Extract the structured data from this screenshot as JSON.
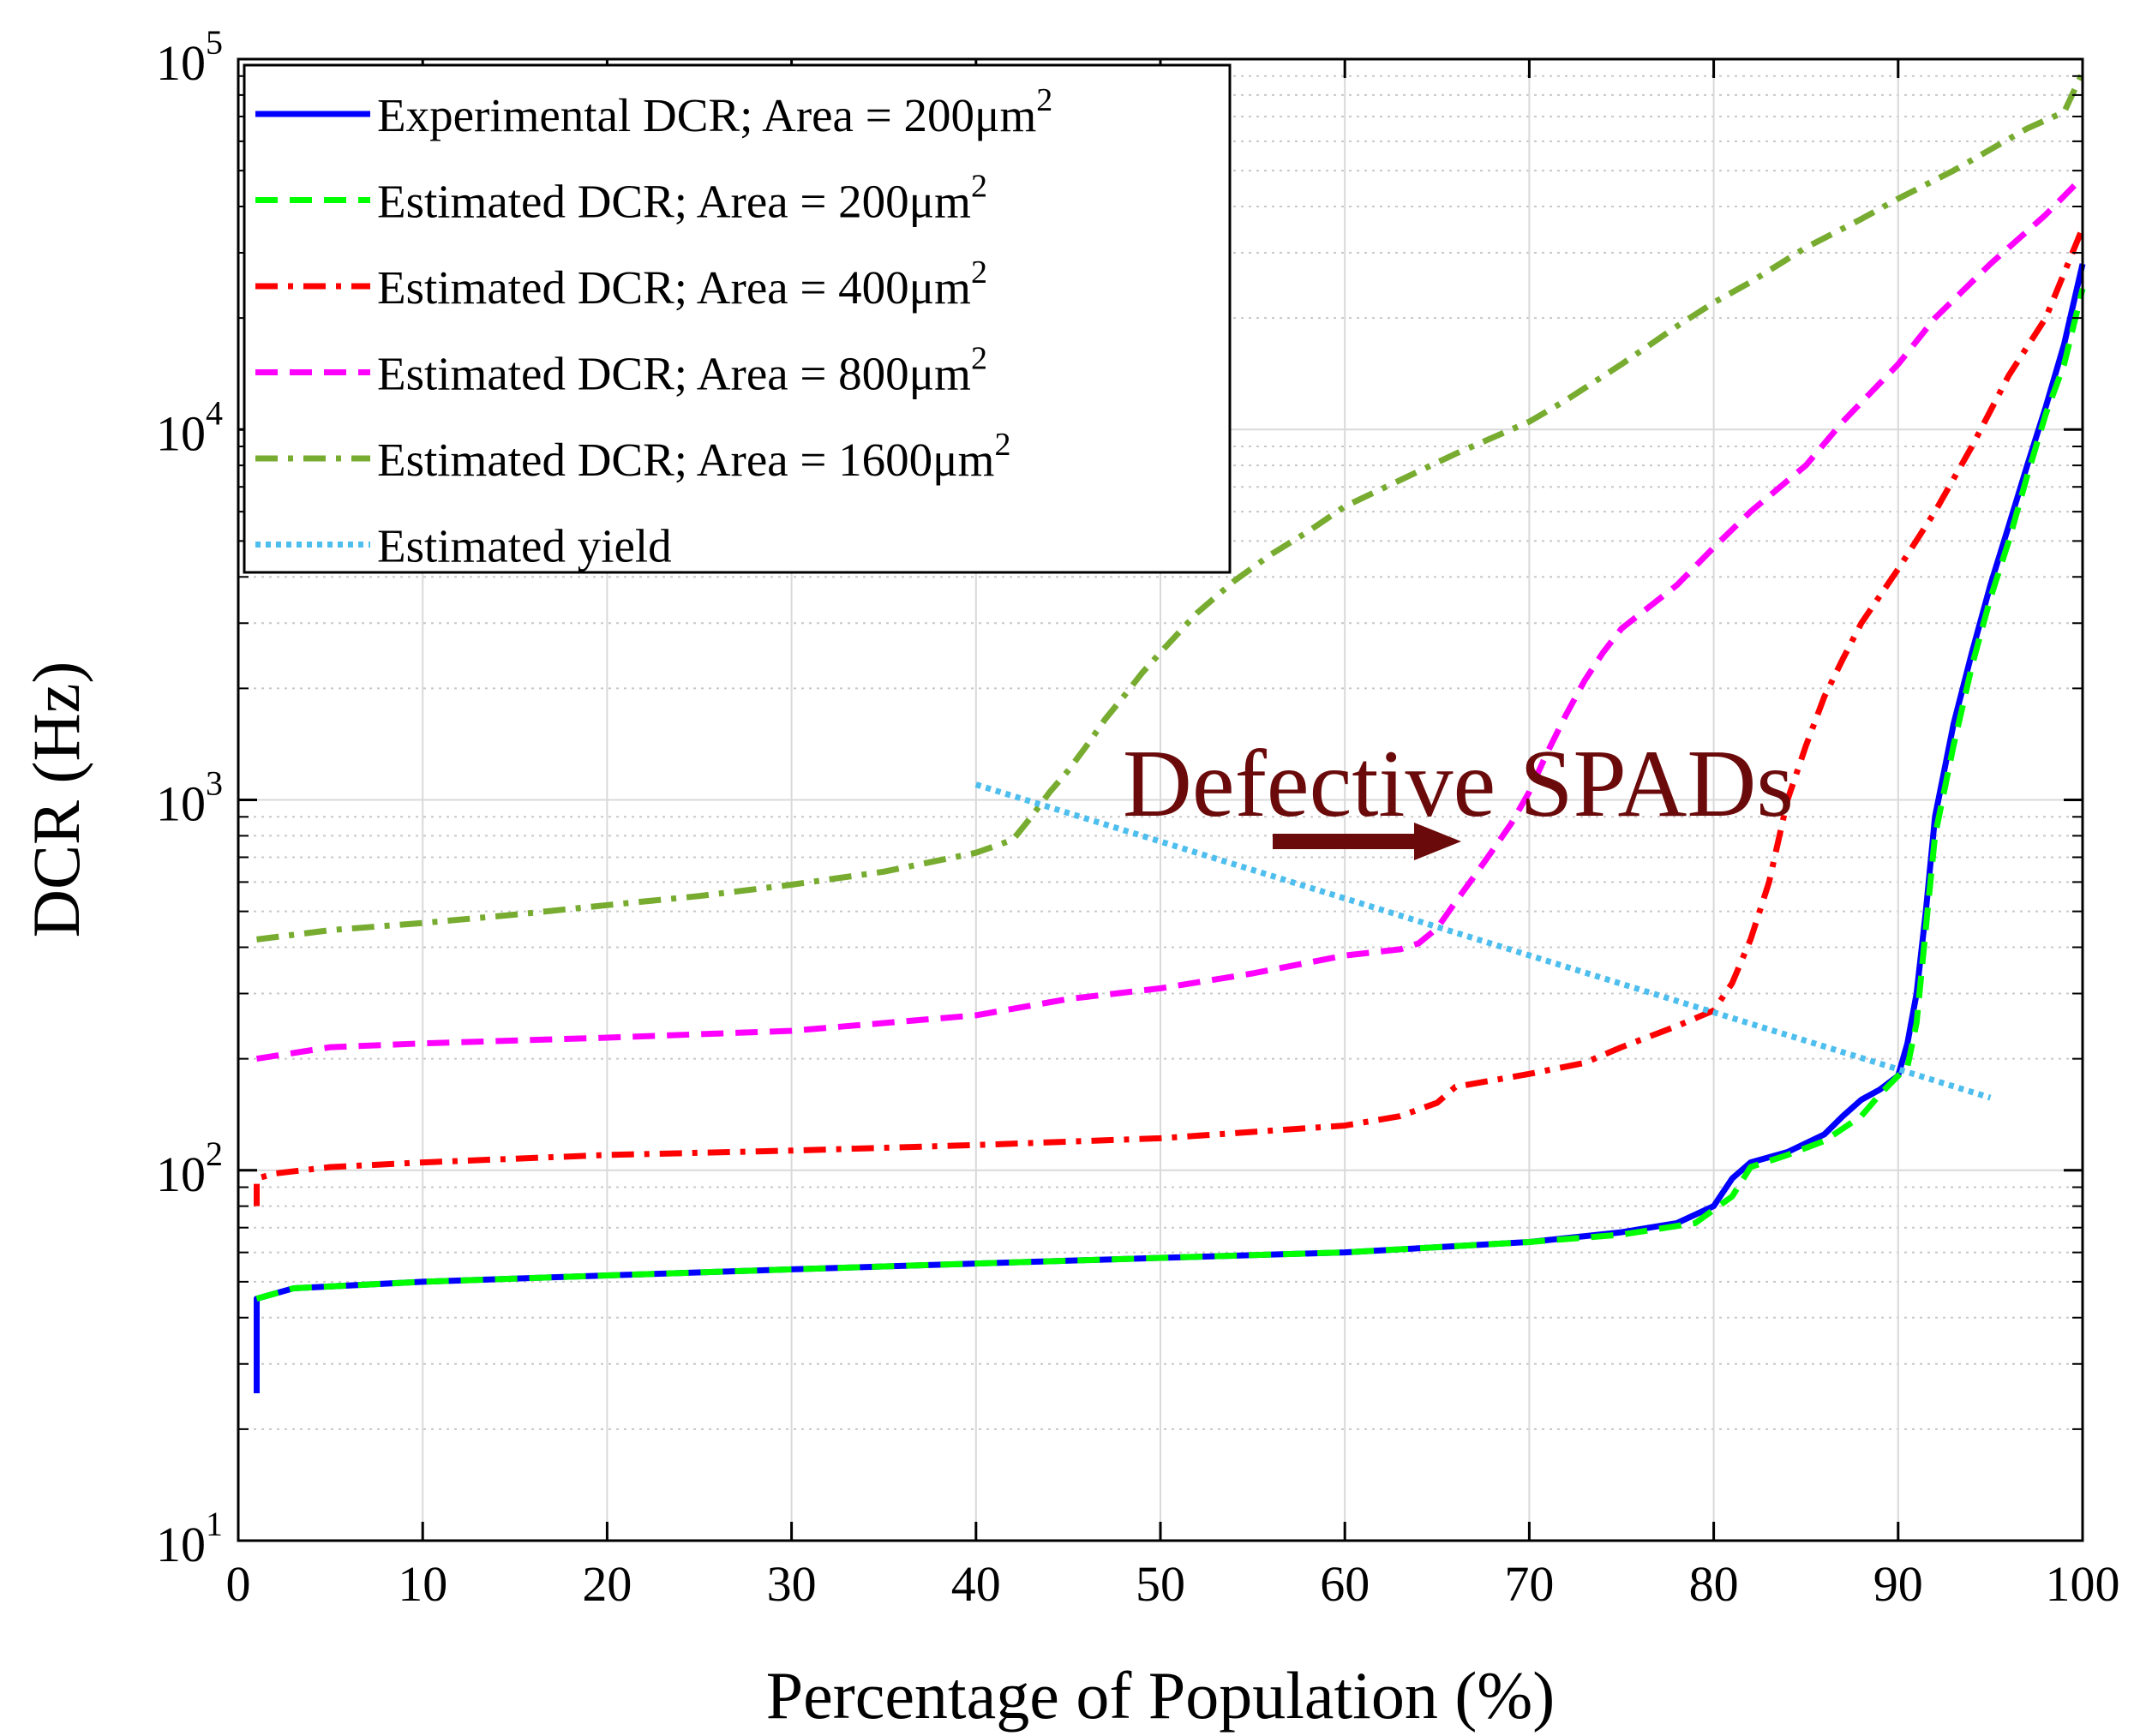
{
  "chart_data": {
    "type": "line",
    "title": "",
    "xlabel": "Percentage of Population (%)",
    "ylabel": "DCR (Hz)",
    "xlim": [
      0,
      100
    ],
    "ylim": [
      10,
      100000
    ],
    "yscale": "log",
    "grid": true,
    "legend_position": "top-left",
    "x_ticks": [
      "0",
      "10",
      "20",
      "30",
      "40",
      "50",
      "60",
      "70",
      "80",
      "90",
      "100"
    ],
    "y_ticks": [
      {
        "base": "10",
        "exp": "1"
      },
      {
        "base": "10",
        "exp": "2"
      },
      {
        "base": "10",
        "exp": "3"
      },
      {
        "base": "10",
        "exp": "4"
      },
      {
        "base": "10",
        "exp": "5"
      }
    ],
    "series": [
      {
        "name": "Experimental DCR; Area = 200μm",
        "superscript": "2",
        "color": "#0000ff",
        "dash": "solid",
        "x": [
          1,
          1,
          3,
          10,
          20,
          30,
          40,
          50,
          60,
          70,
          75,
          78,
          80,
          81,
          82,
          84,
          86,
          87,
          88,
          89,
          90,
          90.5,
          91,
          91.5,
          92,
          93,
          94,
          95,
          96,
          97,
          98,
          99,
          100
        ],
        "y": [
          25,
          45,
          48,
          50,
          52,
          54,
          56,
          58,
          60,
          64,
          68,
          72,
          80,
          95,
          105,
          112,
          125,
          140,
          155,
          165,
          180,
          220,
          300,
          500,
          900,
          1600,
          2500,
          3800,
          5500,
          8000,
          11500,
          17000,
          28000
        ]
      },
      {
        "name": "Estimated DCR; Area = 200μm",
        "superscript": "2",
        "color": "#00ff00",
        "dash": "dashed",
        "x": [
          1,
          3,
          10,
          20,
          30,
          40,
          50,
          60,
          70,
          75,
          79,
          81,
          82,
          84,
          86,
          88,
          89,
          90,
          90.5,
          91,
          91.5,
          92,
          93,
          94,
          95,
          96,
          97,
          98,
          99,
          100
        ],
        "y": [
          45,
          48,
          50,
          52,
          54,
          56,
          58,
          60,
          64,
          67,
          72,
          85,
          102,
          110,
          120,
          140,
          160,
          180,
          190,
          250,
          450,
          800,
          1400,
          2300,
          3500,
          5000,
          7500,
          11000,
          15000,
          24000
        ]
      },
      {
        "name": "Estimated DCR; Area = 400μm",
        "superscript": "2",
        "color": "#ff0000",
        "dash": "dashdot",
        "x": [
          1,
          1,
          2,
          5,
          10,
          20,
          30,
          40,
          50,
          60,
          63,
          65,
          66,
          70,
          73,
          75,
          78,
          80,
          81,
          82,
          83,
          84,
          85,
          86,
          87,
          88,
          90,
          92,
          94,
          96,
          98,
          100
        ],
        "y": [
          80,
          95,
          98,
          102,
          105,
          110,
          113,
          117,
          122,
          132,
          140,
          152,
          168,
          182,
          195,
          215,
          245,
          270,
          320,
          420,
          600,
          1000,
          1400,
          1900,
          2400,
          3000,
          4200,
          6000,
          9000,
          14000,
          20000,
          35000
        ]
      },
      {
        "name": "Estimated DCR; Area = 800μm",
        "superscript": "2",
        "color": "#ff00ff",
        "dash": "dashed",
        "x": [
          1,
          5,
          10,
          20,
          30,
          40,
          45,
          50,
          55,
          60,
          63,
          64,
          65,
          66,
          67,
          68,
          69,
          70,
          71,
          72,
          73,
          74,
          75,
          78,
          80,
          82,
          85,
          87,
          90,
          92,
          95,
          98,
          100
        ],
        "y": [
          200,
          215,
          220,
          228,
          238,
          262,
          290,
          310,
          340,
          380,
          395,
          410,
          450,
          530,
          620,
          730,
          860,
          1050,
          1350,
          1700,
          2100,
          2500,
          2900,
          3800,
          4800,
          6000,
          8000,
          10500,
          15000,
          20000,
          28000,
          38000,
          48000
        ]
      },
      {
        "name": "Estimated DCR; Area = 1600μm",
        "superscript": "2",
        "color": "#77ac30",
        "dash": "dashdot",
        "x": [
          1,
          5,
          10,
          15,
          20,
          25,
          30,
          35,
          40,
          42,
          43,
          44,
          45,
          46,
          47,
          48,
          49,
          50,
          52,
          54,
          56,
          58,
          60,
          63,
          66,
          70,
          72,
          75,
          78,
          80,
          82,
          85,
          88,
          90,
          93,
          95,
          97,
          99,
          100
        ],
        "y": [
          420,
          445,
          465,
          490,
          520,
          550,
          590,
          640,
          720,
          780,
          900,
          1050,
          1200,
          1400,
          1650,
          1900,
          2200,
          2500,
          3200,
          3900,
          4600,
          5300,
          6200,
          7300,
          8600,
          10500,
          12000,
          15000,
          19000,
          22000,
          25000,
          31000,
          37000,
          42000,
          50000,
          57000,
          65000,
          72000,
          92000
        ]
      },
      {
        "name": "Estimated yield",
        "superscript": "",
        "color": "#4dbeee",
        "dash": "dotted",
        "x": [
          40,
          95
        ],
        "y": [
          1100,
          157
        ]
      }
    ],
    "annotations": [
      {
        "text": "Defective SPADs",
        "x": 46,
        "y": 1100,
        "color": "#6b0a0a"
      }
    ]
  }
}
